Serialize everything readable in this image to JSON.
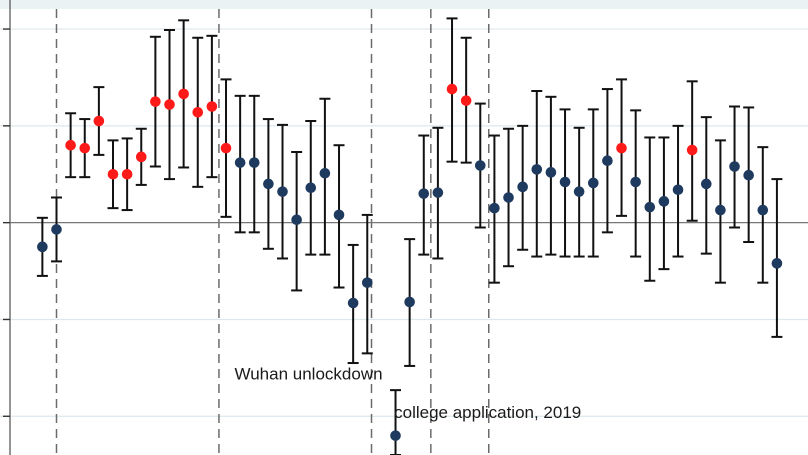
{
  "chart_data": {
    "type": "scatter",
    "grid": true,
    "baseline_y": 0,
    "ylim": [
      -2.4,
      2.3
    ],
    "xlim": [
      0.0,
      57.2
    ],
    "colors": {
      "significant": "#ff1a1a",
      "other": "#1f3a5f",
      "errorbar": "#111111",
      "grid": "#dde7ec",
      "vline": "#6b6b6b",
      "baseline": "#777777"
    },
    "yticks": [
      -2,
      -1,
      0,
      1,
      2
    ],
    "vlines": [
      4,
      15.5,
      26.3,
      30.5,
      34.6
    ],
    "annotations": [
      {
        "text": "Wuhan unlockdown",
        "x": 16.6,
        "y": -1.62
      },
      {
        "text": "college application, 2019",
        "x": 27.9,
        "y": -2.02
      }
    ],
    "points": [
      {
        "x": 3,
        "y": -0.25,
        "lo": -0.55,
        "hi": 0.05,
        "sig": false
      },
      {
        "x": 4,
        "y": -0.07,
        "lo": -0.4,
        "hi": 0.26,
        "sig": false
      },
      {
        "x": 5,
        "y": 0.8,
        "lo": 0.47,
        "hi": 1.13,
        "sig": true
      },
      {
        "x": 6,
        "y": 0.77,
        "lo": 0.47,
        "hi": 1.07,
        "sig": true
      },
      {
        "x": 7,
        "y": 1.05,
        "lo": 0.7,
        "hi": 1.4,
        "sig": true
      },
      {
        "x": 8,
        "y": 0.5,
        "lo": 0.15,
        "hi": 0.85,
        "sig": true
      },
      {
        "x": 9,
        "y": 0.5,
        "lo": 0.13,
        "hi": 0.87,
        "sig": true
      },
      {
        "x": 10,
        "y": 0.68,
        "lo": 0.39,
        "hi": 0.97,
        "sig": true
      },
      {
        "x": 11,
        "y": 1.25,
        "lo": 0.58,
        "hi": 1.92,
        "sig": true
      },
      {
        "x": 12,
        "y": 1.22,
        "lo": 0.45,
        "hi": 1.99,
        "sig": true
      },
      {
        "x": 13,
        "y": 1.33,
        "lo": 0.57,
        "hi": 2.09,
        "sig": true
      },
      {
        "x": 14,
        "y": 1.14,
        "lo": 0.37,
        "hi": 1.91,
        "sig": true
      },
      {
        "x": 15,
        "y": 1.2,
        "lo": 0.47,
        "hi": 1.93,
        "sig": true
      },
      {
        "x": 16,
        "y": 0.77,
        "lo": 0.06,
        "hi": 1.48,
        "sig": true
      },
      {
        "x": 17,
        "y": 0.62,
        "lo": -0.1,
        "hi": 1.31,
        "sig": false
      },
      {
        "x": 18,
        "y": 0.62,
        "lo": -0.1,
        "hi": 1.31,
        "sig": false
      },
      {
        "x": 19,
        "y": 0.4,
        "lo": -0.27,
        "hi": 1.07,
        "sig": false
      },
      {
        "x": 20,
        "y": 0.32,
        "lo": -0.37,
        "hi": 1.01,
        "sig": false
      },
      {
        "x": 21,
        "y": 0.03,
        "lo": -0.7,
        "hi": 0.73,
        "sig": false
      },
      {
        "x": 22,
        "y": 0.36,
        "lo": -0.33,
        "hi": 1.05,
        "sig": false
      },
      {
        "x": 23,
        "y": 0.51,
        "lo": -0.33,
        "hi": 1.28,
        "sig": false
      },
      {
        "x": 24,
        "y": 0.08,
        "lo": -0.67,
        "hi": 0.8,
        "sig": false
      },
      {
        "x": 25,
        "y": -0.83,
        "lo": -1.45,
        "hi": -0.23,
        "sig": false
      },
      {
        "x": 26,
        "y": -0.62,
        "lo": -1.35,
        "hi": 0.08,
        "sig": false
      },
      {
        "x": 28,
        "y": -2.2,
        "lo": -2.4,
        "hi": -1.73,
        "sig": false
      },
      {
        "x": 29,
        "y": -0.82,
        "lo": -1.48,
        "hi": -0.17,
        "sig": false
      },
      {
        "x": 30,
        "y": 0.3,
        "lo": -0.33,
        "hi": 0.9,
        "sig": false
      },
      {
        "x": 31,
        "y": 0.31,
        "lo": -0.37,
        "hi": 0.98,
        "sig": false
      },
      {
        "x": 32,
        "y": 1.38,
        "lo": 0.63,
        "hi": 2.11,
        "sig": true
      },
      {
        "x": 33,
        "y": 1.26,
        "lo": 0.62,
        "hi": 1.91,
        "sig": true
      },
      {
        "x": 34,
        "y": 0.59,
        "lo": -0.05,
        "hi": 1.23,
        "sig": false
      },
      {
        "x": 35,
        "y": 0.15,
        "lo": -0.62,
        "hi": 0.9,
        "sig": false
      },
      {
        "x": 36,
        "y": 0.26,
        "lo": -0.45,
        "hi": 0.97,
        "sig": false
      },
      {
        "x": 37,
        "y": 0.37,
        "lo": -0.28,
        "hi": 1.0,
        "sig": false
      },
      {
        "x": 38,
        "y": 0.55,
        "lo": -0.35,
        "hi": 1.36,
        "sig": false
      },
      {
        "x": 39,
        "y": 0.52,
        "lo": -0.33,
        "hi": 1.3,
        "sig": false
      },
      {
        "x": 40,
        "y": 0.42,
        "lo": -0.35,
        "hi": 1.17,
        "sig": false
      },
      {
        "x": 41,
        "y": 0.32,
        "lo": -0.35,
        "hi": 0.98,
        "sig": false
      },
      {
        "x": 42,
        "y": 0.41,
        "lo": -0.35,
        "hi": 1.17,
        "sig": false
      },
      {
        "x": 43,
        "y": 0.64,
        "lo": -0.1,
        "hi": 1.38,
        "sig": false
      },
      {
        "x": 44,
        "y": 0.77,
        "lo": 0.07,
        "hi": 1.48,
        "sig": true
      },
      {
        "x": 45,
        "y": 0.42,
        "lo": -0.35,
        "hi": 1.16,
        "sig": false
      },
      {
        "x": 46,
        "y": 0.16,
        "lo": -0.6,
        "hi": 0.88,
        "sig": false
      },
      {
        "x": 47,
        "y": 0.22,
        "lo": -0.48,
        "hi": 0.88,
        "sig": false
      },
      {
        "x": 48,
        "y": 0.34,
        "lo": -0.35,
        "hi": 1.0,
        "sig": false
      },
      {
        "x": 49,
        "y": 0.75,
        "lo": 0.02,
        "hi": 1.46,
        "sig": true
      },
      {
        "x": 50,
        "y": 0.4,
        "lo": -0.32,
        "hi": 1.09,
        "sig": false
      },
      {
        "x": 51,
        "y": 0.13,
        "lo": -0.62,
        "hi": 0.85,
        "sig": false
      },
      {
        "x": 52,
        "y": 0.58,
        "lo": -0.05,
        "hi": 1.2,
        "sig": false
      },
      {
        "x": 53,
        "y": 0.49,
        "lo": -0.2,
        "hi": 1.19,
        "sig": false
      },
      {
        "x": 54,
        "y": 0.13,
        "lo": -0.62,
        "hi": 0.78,
        "sig": false
      },
      {
        "x": 55,
        "y": -0.42,
        "lo": -1.18,
        "hi": 0.45,
        "sig": false
      }
    ]
  }
}
